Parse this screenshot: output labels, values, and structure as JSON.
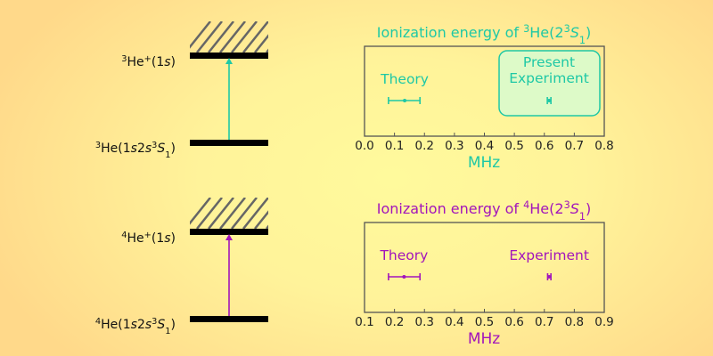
{
  "colors": {
    "he3": "#1ec8a6",
    "he4": "#a215bb",
    "level": "#000000",
    "hatch": "#666666",
    "box_fill": "#ddfac8"
  },
  "diagrams": [
    {
      "upper_label": {
        "sup": "3",
        "main": "He",
        "sup2": "+",
        "tail": "(1",
        "ital": "s",
        "end": ")"
      },
      "lower_label": {
        "sup": "3",
        "main": "He(1",
        "i1": "s",
        "mid": "2",
        "i2": "s",
        "sup2": "3",
        "i3": "S",
        "sub": "1",
        "end": ")"
      }
    },
    {
      "upper_label": {
        "sup": "4",
        "main": "He",
        "sup2": "+",
        "tail": "(1",
        "ital": "s",
        "end": ")"
      },
      "lower_label": {
        "sup": "4",
        "main": "He(1",
        "i1": "s",
        "mid": "2",
        "i2": "s",
        "sup2": "3",
        "i3": "S",
        "sub": "1",
        "end": ")"
      }
    }
  ],
  "chart_data": [
    {
      "type": "scatter",
      "title": {
        "pre": "Ionization energy of ",
        "sup": "3",
        "main": "He(2",
        "sup2": "3",
        "ital": "S",
        "sub": "1",
        "end": ")"
      },
      "xlabel": "MHz",
      "xlim": [
        0.0,
        0.8
      ],
      "xticks": [
        "0.0",
        "0.1",
        "0.2",
        "0.3",
        "0.4",
        "0.5",
        "0.6",
        "0.7",
        "0.8"
      ],
      "points": [
        {
          "name": "Theory",
          "label_lines": [
            "Theory"
          ],
          "x": 0.134,
          "xerr_low": 0.08,
          "xerr_high": 0.185,
          "boxed": false
        },
        {
          "name": "Present Experiment",
          "label_lines": [
            "Present",
            "Experiment"
          ],
          "x": 0.616,
          "xerr_low": 0.61,
          "xerr_high": 0.622,
          "boxed": true
        }
      ]
    },
    {
      "type": "scatter",
      "title": {
        "pre": "Ionization energy of ",
        "sup": "4",
        "main": "He(2",
        "sup2": "3",
        "ital": "S",
        "sub": "1",
        "end": ")"
      },
      "xlabel": "MHz",
      "xlim": [
        0.1,
        0.9
      ],
      "xticks": [
        "0.1",
        "0.2",
        "0.3",
        "0.4",
        "0.5",
        "0.6",
        "0.7",
        "0.8",
        "0.9"
      ],
      "points": [
        {
          "name": "Theory",
          "label_lines": [
            "Theory"
          ],
          "x": 0.232,
          "xerr_low": 0.18,
          "xerr_high": 0.285,
          "boxed": false
        },
        {
          "name": "Experiment",
          "label_lines": [
            "Experiment"
          ],
          "x": 0.716,
          "xerr_low": 0.711,
          "xerr_high": 0.722,
          "boxed": false
        }
      ]
    }
  ]
}
